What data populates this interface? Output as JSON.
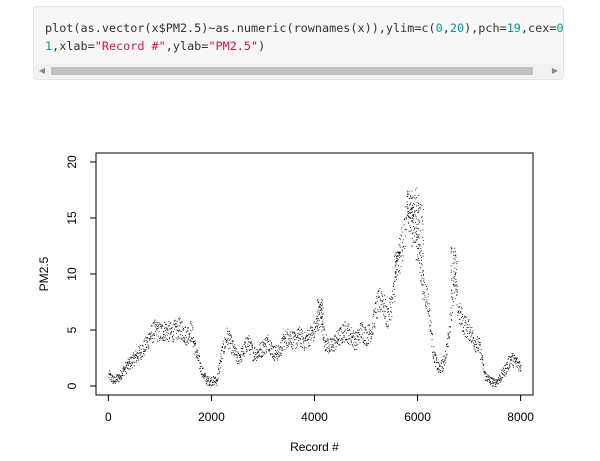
{
  "code": {
    "line1": [
      {
        "t": "plot(as.vector(x$PM2.5)~as.numeric(rownames(x)),ylim=c(",
        "c": "fn"
      },
      {
        "t": "0",
        "c": "num"
      },
      {
        "t": ",",
        "c": "fn"
      },
      {
        "t": "20",
        "c": "num"
      },
      {
        "t": "),pch=",
        "c": "fn"
      },
      {
        "t": "19",
        "c": "num"
      },
      {
        "t": ",cex=",
        "c": "fn"
      },
      {
        "t": "0",
        "c": "num"
      }
    ],
    "line2": [
      {
        "t": "1",
        "c": "num"
      },
      {
        "t": ",xlab=",
        "c": "fn"
      },
      {
        "t": "\"Record #\"",
        "c": "str"
      },
      {
        "t": ",ylab=",
        "c": "fn"
      },
      {
        "t": "\"PM2.5\"",
        "c": "str"
      },
      {
        "t": ")",
        "c": "fn"
      }
    ]
  },
  "scrollbar": {
    "left_icon": "triangle-left-icon",
    "right_icon": "triangle-right-icon"
  },
  "chart_data": {
    "type": "scatter",
    "xlabel": "Record #",
    "ylabel": "PM2.5",
    "xlim": [
      0,
      8000
    ],
    "ylim": [
      0,
      20
    ],
    "x_ticks": [
      0,
      2000,
      4000,
      6000,
      8000
    ],
    "y_ticks": [
      0,
      5,
      10,
      15,
      20
    ],
    "point_color": "#000000",
    "approx_points": [
      [
        0,
        1.0
      ],
      [
        100,
        0.5
      ],
      [
        200,
        0.8
      ],
      [
        300,
        1.5
      ],
      [
        400,
        2.0
      ],
      [
        500,
        2.5
      ],
      [
        600,
        3.0
      ],
      [
        700,
        3.5
      ],
      [
        800,
        4.5
      ],
      [
        900,
        5.0
      ],
      [
        1000,
        4.8
      ],
      [
        1100,
        5.0
      ],
      [
        1200,
        4.8
      ],
      [
        1300,
        5.0
      ],
      [
        1400,
        5.2
      ],
      [
        1500,
        4.5
      ],
      [
        1600,
        5.0
      ],
      [
        1700,
        3.0
      ],
      [
        1800,
        1.5
      ],
      [
        1900,
        0.5
      ],
      [
        2000,
        0.5
      ],
      [
        2100,
        0.5
      ],
      [
        2200,
        3.0
      ],
      [
        2300,
        4.5
      ],
      [
        2400,
        3.5
      ],
      [
        2500,
        2.5
      ],
      [
        2600,
        3.0
      ],
      [
        2700,
        4.0
      ],
      [
        2800,
        3.0
      ],
      [
        2900,
        3.0
      ],
      [
        3000,
        3.5
      ],
      [
        3100,
        4.0
      ],
      [
        3200,
        3.0
      ],
      [
        3300,
        3.0
      ],
      [
        3400,
        4.0
      ],
      [
        3500,
        4.5
      ],
      [
        3600,
        4.0
      ],
      [
        3700,
        4.5
      ],
      [
        3800,
        4.0
      ],
      [
        3900,
        4.5
      ],
      [
        4000,
        5.0
      ],
      [
        4100,
        6.5
      ],
      [
        4200,
        4.0
      ],
      [
        4300,
        3.5
      ],
      [
        4400,
        4.0
      ],
      [
        4500,
        4.5
      ],
      [
        4600,
        5.0
      ],
      [
        4700,
        4.5
      ],
      [
        4800,
        4.0
      ],
      [
        4900,
        5.0
      ],
      [
        5000,
        4.5
      ],
      [
        5100,
        5.0
      ],
      [
        5200,
        7.0
      ],
      [
        5300,
        8.0
      ],
      [
        5400,
        6.0
      ],
      [
        5500,
        7.5
      ],
      [
        5600,
        10.5
      ],
      [
        5700,
        13.0
      ],
      [
        5800,
        15.0
      ],
      [
        5900,
        14.5
      ],
      [
        6000,
        12.5
      ],
      [
        6100,
        9.0
      ],
      [
        6200,
        7.5
      ],
      [
        6300,
        3.0
      ],
      [
        6400,
        1.5
      ],
      [
        6500,
        2.0
      ],
      [
        6600,
        4.5
      ],
      [
        6700,
        9.5
      ],
      [
        6800,
        6.5
      ],
      [
        6900,
        5.5
      ],
      [
        7000,
        5.0
      ],
      [
        7100,
        4.0
      ],
      [
        7200,
        3.5
      ],
      [
        7300,
        1.0
      ],
      [
        7400,
        0.5
      ],
      [
        7500,
        0.3
      ],
      [
        7600,
        0.8
      ],
      [
        7700,
        1.5
      ],
      [
        7800,
        2.5
      ],
      [
        7900,
        2.2
      ],
      [
        8000,
        1.8
      ]
    ],
    "spikes": [
      [
        5850,
        17.5
      ],
      [
        5950,
        17.8
      ],
      [
        6050,
        16.5
      ],
      [
        6700,
        12.5
      ],
      [
        4100,
        7.8
      ],
      [
        5600,
        12.0
      ]
    ]
  }
}
